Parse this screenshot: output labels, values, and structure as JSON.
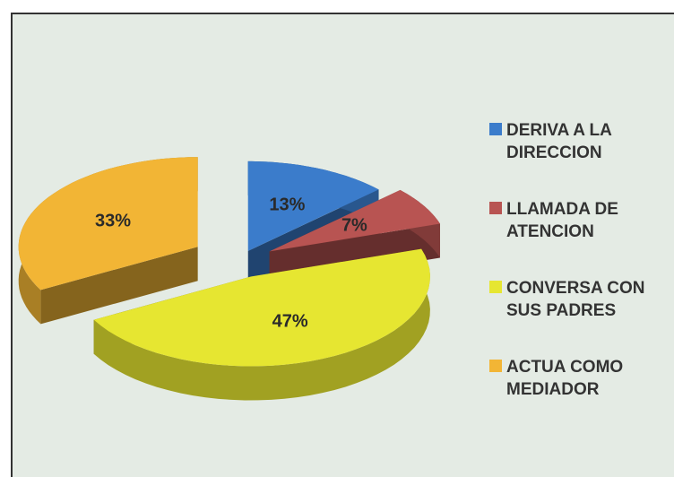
{
  "chart_data": {
    "type": "pie",
    "categories": [
      "DERIVA A LA DIRECCION",
      "LLAMADA DE ATENCION",
      "CONVERSA CON SUS PADRES",
      "ACTUA COMO MEDIADOR"
    ],
    "values": [
      13,
      7,
      47,
      33
    ],
    "value_labels": [
      "13%",
      "7%",
      "47%",
      "33%"
    ],
    "colors": [
      "#3b7ccb",
      "#b85452",
      "#e6e631",
      "#f2b535"
    ],
    "legend": "right"
  }
}
